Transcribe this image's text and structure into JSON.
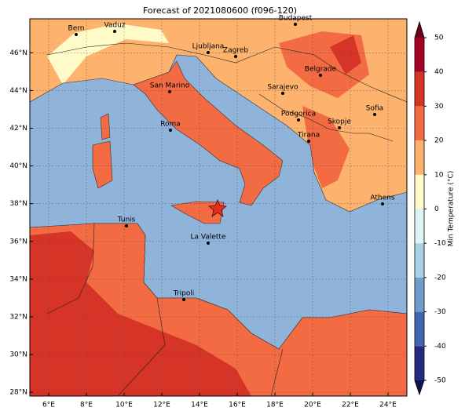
{
  "title": "Forecast of 2021080600 (f096-120)",
  "map": {
    "lon_range": [
      5,
      25
    ],
    "lat_range": [
      27.8,
      47.8
    ],
    "lon_ticks": [
      {
        "value": 6,
        "label": "6°E"
      },
      {
        "value": 8,
        "label": "8°E"
      },
      {
        "value": 10,
        "label": "10°E"
      },
      {
        "value": 12,
        "label": "12°E"
      },
      {
        "value": 14,
        "label": "14°E"
      },
      {
        "value": 16,
        "label": "16°E"
      },
      {
        "value": 18,
        "label": "18°E"
      },
      {
        "value": 20,
        "label": "20°E"
      },
      {
        "value": 22,
        "label": "22°E"
      },
      {
        "value": 24,
        "label": "24°E"
      }
    ],
    "lat_ticks": [
      {
        "value": 28,
        "label": "28°N"
      },
      {
        "value": 30,
        "label": "30°N"
      },
      {
        "value": 32,
        "label": "32°N"
      },
      {
        "value": 34,
        "label": "34°N"
      },
      {
        "value": 36,
        "label": "36°N"
      },
      {
        "value": 38,
        "label": "38°N"
      },
      {
        "value": 40,
        "label": "40°N"
      },
      {
        "value": 42,
        "label": "42°N"
      },
      {
        "value": 44,
        "label": "44°N"
      },
      {
        "value": 46,
        "label": "46°N"
      }
    ],
    "grid": true,
    "cities": [
      "Bern",
      "Vaduz",
      "Budapest",
      "Ljubljana",
      "Zagreb",
      "Belgrade",
      "San Marino",
      "Sarajevo",
      "Sofia",
      "Roma",
      "Podgorica",
      "Skopje",
      "Tirana",
      "Athens",
      "Tunis",
      "La Valette",
      "Tripoli"
    ]
  },
  "colorbar": {
    "label": "Min Temperature (°C)",
    "range": [
      -50,
      50
    ],
    "ticks": [
      -50,
      -40,
      -30,
      -20,
      -10,
      0,
      10,
      20,
      30,
      40,
      50
    ],
    "colors": [
      "#252a7a",
      "#4068ae",
      "#6f9ccb",
      "#a9d1e6",
      "#e2f3f8",
      "#fffbc8",
      "#fdb36e",
      "#f26b43",
      "#d63427",
      "#a50026"
    ],
    "under_color": "#0f1450",
    "over_color": "#6e0018"
  }
}
